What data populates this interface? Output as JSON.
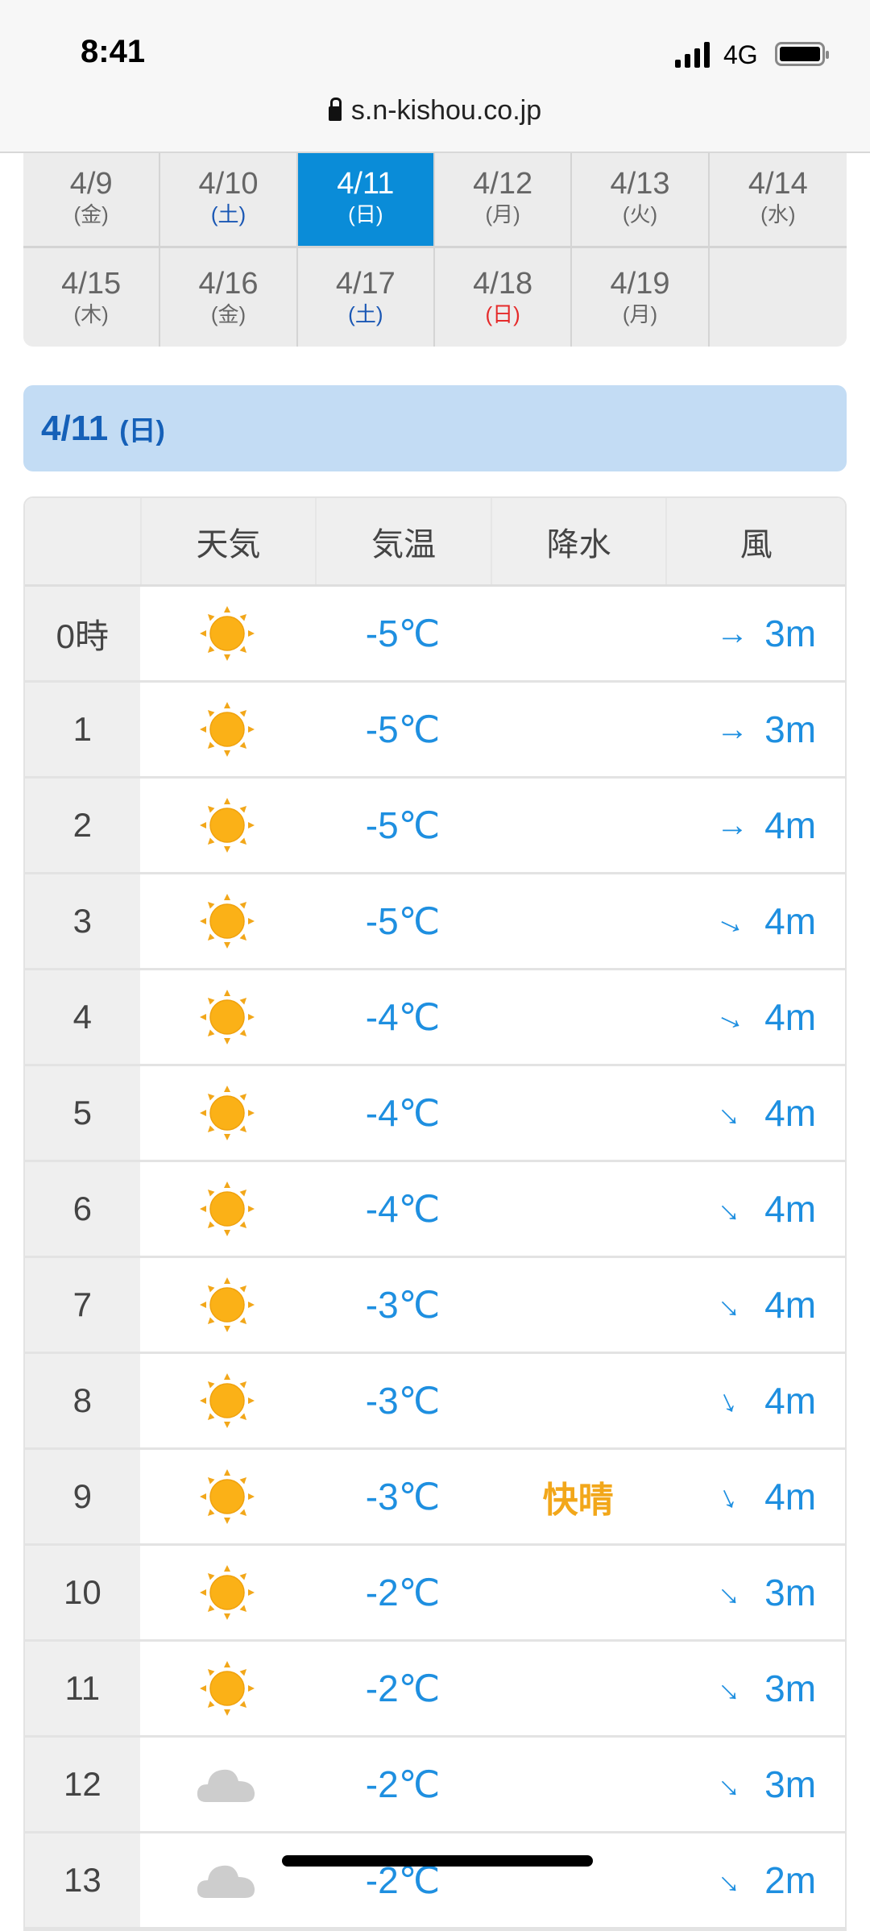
{
  "status": {
    "time": "8:41",
    "network": "4G"
  },
  "browser": {
    "url": "s.n-kishou.co.jp"
  },
  "dates": [
    {
      "date": "4/9",
      "weekday": "(金)",
      "type": "weekday"
    },
    {
      "date": "4/10",
      "weekday": "(土)",
      "type": "sat"
    },
    {
      "date": "4/11",
      "weekday": "(日)",
      "type": "selected"
    },
    {
      "date": "4/12",
      "weekday": "(月)",
      "type": "weekday"
    },
    {
      "date": "4/13",
      "weekday": "(火)",
      "type": "weekday"
    },
    {
      "date": "4/14",
      "weekday": "(水)",
      "type": "weekday"
    },
    {
      "date": "4/15",
      "weekday": "(木)",
      "type": "weekday"
    },
    {
      "date": "4/16",
      "weekday": "(金)",
      "type": "weekday"
    },
    {
      "date": "4/17",
      "weekday": "(土)",
      "type": "sat"
    },
    {
      "date": "4/18",
      "weekday": "(日)",
      "type": "sun"
    },
    {
      "date": "4/19",
      "weekday": "(月)",
      "type": "weekday"
    }
  ],
  "heading": {
    "date": "4/11",
    "weekday": "(日)"
  },
  "table": {
    "headers": [
      "",
      "天気",
      "気温",
      "降水",
      "風"
    ],
    "rows": [
      {
        "hour": "0時",
        "weather": "sun",
        "temp": "-5℃",
        "precip": "",
        "wind_dir": 0,
        "wind": "3m"
      },
      {
        "hour": "1",
        "weather": "sun",
        "temp": "-5℃",
        "precip": "",
        "wind_dir": 0,
        "wind": "3m"
      },
      {
        "hour": "2",
        "weather": "sun",
        "temp": "-5℃",
        "precip": "",
        "wind_dir": 0,
        "wind": "4m"
      },
      {
        "hour": "3",
        "weather": "sun",
        "temp": "-5℃",
        "precip": "",
        "wind_dir": 25,
        "wind": "4m"
      },
      {
        "hour": "4",
        "weather": "sun",
        "temp": "-4℃",
        "precip": "",
        "wind_dir": 25,
        "wind": "4m"
      },
      {
        "hour": "5",
        "weather": "sun",
        "temp": "-4℃",
        "precip": "",
        "wind_dir": 45,
        "wind": "4m"
      },
      {
        "hour": "6",
        "weather": "sun",
        "temp": "-4℃",
        "precip": "",
        "wind_dir": 45,
        "wind": "4m"
      },
      {
        "hour": "7",
        "weather": "sun",
        "temp": "-3℃",
        "precip": "",
        "wind_dir": 45,
        "wind": "4m"
      },
      {
        "hour": "8",
        "weather": "sun",
        "temp": "-3℃",
        "precip": "",
        "wind_dir": 65,
        "wind": "4m"
      },
      {
        "hour": "9",
        "weather": "sun",
        "temp": "-3℃",
        "precip": "快晴",
        "wind_dir": 65,
        "wind": "4m"
      },
      {
        "hour": "10",
        "weather": "sun",
        "temp": "-2℃",
        "precip": "",
        "wind_dir": 45,
        "wind": "3m"
      },
      {
        "hour": "11",
        "weather": "sun",
        "temp": "-2℃",
        "precip": "",
        "wind_dir": 45,
        "wind": "3m"
      },
      {
        "hour": "12",
        "weather": "cloud",
        "temp": "-2℃",
        "precip": "",
        "wind_dir": 45,
        "wind": "3m"
      },
      {
        "hour": "13",
        "weather": "cloud",
        "temp": "-2℃",
        "precip": "",
        "wind_dir": 45,
        "wind": "2m"
      }
    ]
  },
  "colors": {
    "selected": "#0a8cd8",
    "saturday": "#1a57b4",
    "sunday": "#e52a2a",
    "value": "#1e8fe0",
    "precip": "#f2a71a",
    "heading_bg": "#c3dcf4"
  }
}
